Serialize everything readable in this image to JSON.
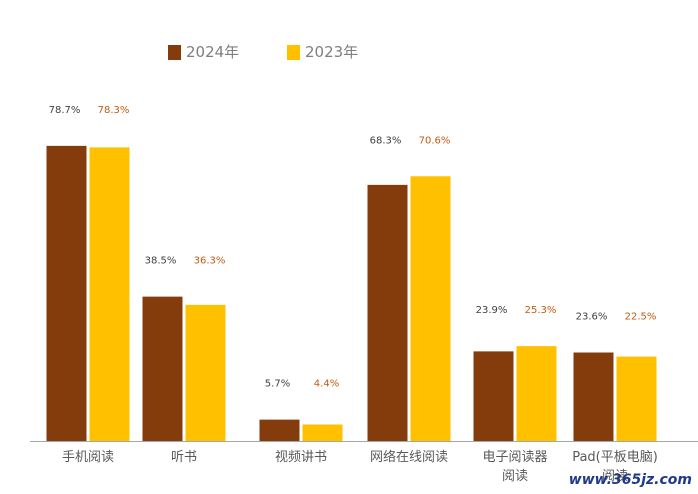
{
  "chart_data": {
    "type": "bar",
    "categories": [
      "手机阅读",
      "听书",
      "视频讲书",
      "网络在线阅读",
      "电子阅读器阅读",
      "Pad(平板电脑)阅读"
    ],
    "category_lines": [
      [
        "手机阅读"
      ],
      [
        "听书"
      ],
      [
        "视频讲书"
      ],
      [
        "网络在线阅读"
      ],
      [
        "电子阅读器",
        "阅读"
      ],
      [
        "Pad(平板电脑)",
        "阅读"
      ]
    ],
    "series": [
      {
        "name": "2024年",
        "color": "#843c0c",
        "label_color": "#404040",
        "values": [
          78.7,
          38.5,
          5.7,
          68.3,
          23.9,
          23.6
        ],
        "labels": [
          "78.7%",
          "38.5%",
          "5.7%",
          "68.3%",
          "23.9%",
          "23.6%"
        ]
      },
      {
        "name": "2023年",
        "color": "#ffc000",
        "label_color": "#c55a11",
        "values": [
          78.3,
          36.3,
          4.4,
          70.6,
          25.3,
          22.5
        ],
        "labels": [
          "78.3%",
          "36.3%",
          "4.4%",
          "70.6%",
          "25.3%",
          "22.5%"
        ]
      }
    ],
    "ylim": [
      0,
      85
    ],
    "legend_position": "top-center",
    "axis_color": "#a6a6a6",
    "grid": false,
    "watermark": "www.365jz.com"
  }
}
